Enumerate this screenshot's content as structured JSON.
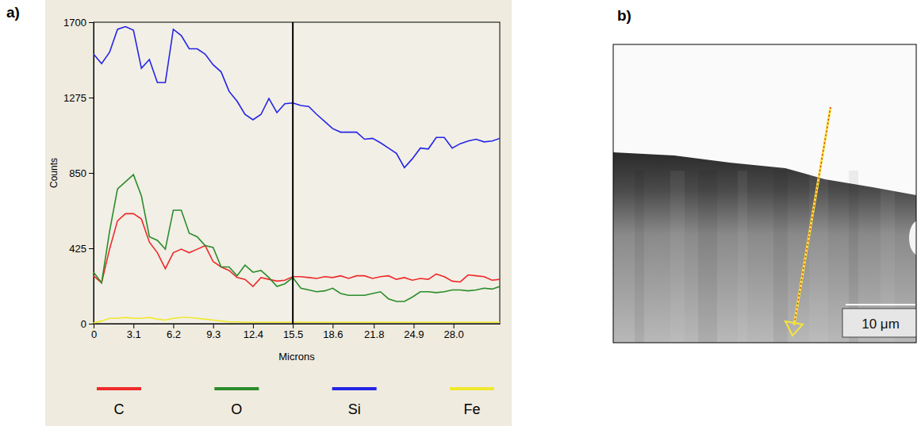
{
  "chart_data": [
    {
      "type": "line",
      "panel": "a)",
      "xlabel": "Microns",
      "ylabel": "Counts",
      "x": [
        0,
        0.62,
        1.24,
        1.86,
        2.48,
        3.1,
        3.72,
        4.34,
        4.96,
        5.58,
        6.2,
        6.82,
        7.44,
        8.06,
        8.68,
        9.3,
        9.92,
        10.54,
        11.16,
        11.78,
        12.4,
        13.02,
        13.64,
        14.26,
        14.88,
        15.5,
        16.12,
        16.74,
        17.36,
        17.98,
        18.6,
        19.22,
        19.84,
        20.46,
        21.08,
        21.7,
        22.32,
        22.94,
        23.56,
        24.18,
        24.8,
        25.42,
        26.04,
        26.66,
        27.28,
        27.9,
        28.52,
        29.14,
        29.76,
        30.38,
        31,
        31.62
      ],
      "series": [
        {
          "name": "C",
          "color": "#ee2a2a",
          "values": [
            270,
            230,
            420,
            580,
            620,
            620,
            590,
            460,
            400,
            310,
            400,
            420,
            400,
            420,
            440,
            350,
            320,
            300,
            260,
            250,
            210,
            260,
            250,
            240,
            245,
            265,
            265,
            260,
            255,
            265,
            260,
            270,
            255,
            270,
            270,
            255,
            265,
            270,
            250,
            260,
            245,
            255,
            250,
            280,
            265,
            240,
            235,
            275,
            270,
            265,
            245,
            250
          ]
        },
        {
          "name": "O",
          "color": "#2a8c2a",
          "values": [
            290,
            230,
            520,
            760,
            800,
            840,
            720,
            490,
            470,
            420,
            640,
            640,
            510,
            490,
            440,
            430,
            320,
            320,
            270,
            330,
            290,
            300,
            260,
            210,
            225,
            260,
            200,
            190,
            180,
            185,
            200,
            170,
            160,
            160,
            160,
            170,
            180,
            140,
            125,
            125,
            150,
            180,
            180,
            175,
            180,
            190,
            190,
            185,
            190,
            200,
            195,
            210
          ]
        },
        {
          "name": "Si",
          "color": "#2424e6",
          "values": [
            1520,
            1466,
            1530,
            1660,
            1675,
            1655,
            1440,
            1490,
            1360,
            1360,
            1660,
            1625,
            1550,
            1550,
            1520,
            1460,
            1420,
            1310,
            1255,
            1180,
            1150,
            1180,
            1270,
            1190,
            1240,
            1245,
            1230,
            1225,
            1180,
            1140,
            1100,
            1080,
            1080,
            1080,
            1040,
            1045,
            1020,
            990,
            960,
            880,
            930,
            990,
            985,
            1050,
            1050,
            990,
            1015,
            1030,
            1040,
            1025,
            1030,
            1045
          ]
        },
        {
          "name": "Fe",
          "color": "#f0e82e",
          "values": [
            5,
            15,
            30,
            30,
            35,
            30,
            30,
            35,
            25,
            20,
            30,
            35,
            35,
            30,
            25,
            20,
            15,
            10,
            10,
            8,
            8,
            8,
            8,
            8,
            8,
            8,
            8,
            8,
            8,
            8,
            8,
            8,
            8,
            8,
            8,
            8,
            8,
            8,
            8,
            8,
            8,
            8,
            8,
            8,
            8,
            8,
            8,
            8,
            8,
            8,
            8,
            8
          ]
        }
      ],
      "xlim": [
        0,
        31.6
      ],
      "xticks": [
        0,
        3.1,
        6.2,
        9.3,
        12.4,
        15.5,
        18.6,
        21.8,
        24.9,
        {
          "value": 28,
          "label": "28.0"
        }
      ],
      "ylim": [
        0,
        1700
      ],
      "yticks": [
        0,
        425,
        850,
        1275,
        1700
      ],
      "vertical_line": 15.5,
      "grid": false,
      "legend": "bottom"
    },
    {
      "type": "image",
      "panel": "b)",
      "scale_bar_label": "10 μm"
    }
  ]
}
